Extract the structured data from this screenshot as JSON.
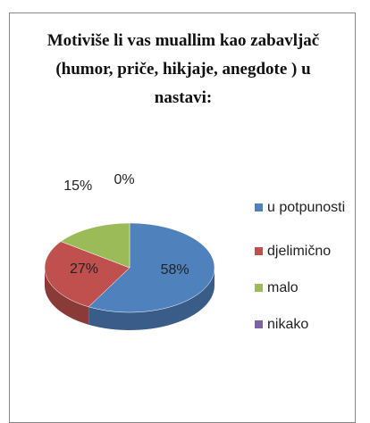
{
  "chart_data": {
    "type": "pie",
    "title": "Motiviše li vas muallim kao zabavljač (humor, priče, hikjaje, anegdote ) u nastavi:",
    "categories": [
      "u potpunosti",
      "djelimično",
      "malo",
      "nikako"
    ],
    "values": [
      58,
      27,
      15,
      0
    ],
    "value_labels": [
      "58%",
      "27%",
      "15%",
      "0%"
    ],
    "colors": [
      "#4f81bd",
      "#c0504d",
      "#9bbb59",
      "#8064a2"
    ],
    "legend": "right"
  }
}
